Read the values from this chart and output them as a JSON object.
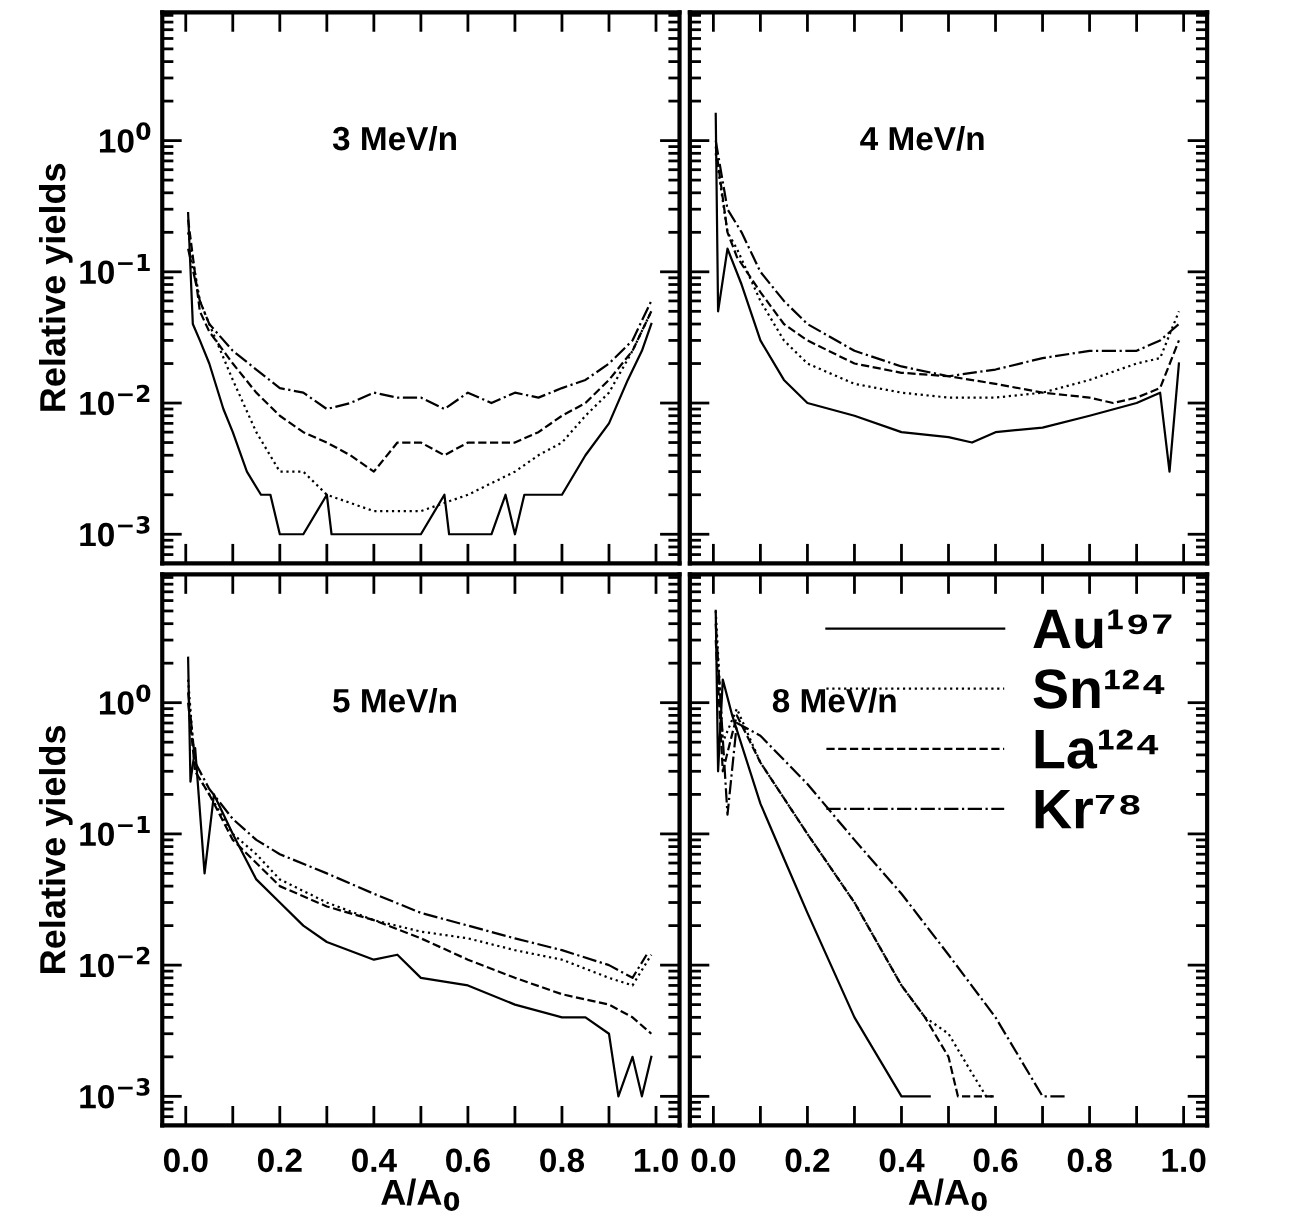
{
  "chart_data": [
    {
      "type": "line",
      "log": true,
      "tick_labels": "y",
      "ylabel": "Relative yields",
      "annotations": [
        "3 MeV/n"
      ],
      "xlim": [
        -0.05,
        1.05
      ],
      "ylim": [
        0.0006,
        9.5
      ],
      "xticks": [
        {
          "value": 0,
          "label": null
        },
        {
          "value": 0.1,
          "label": null
        },
        {
          "value": 0.2,
          "label": null
        },
        {
          "value": 0.3,
          "label": null
        },
        {
          "value": 0.4,
          "label": null
        },
        {
          "value": 0.5,
          "label": null
        },
        {
          "value": 0.6,
          "label": null
        },
        {
          "value": 0.7,
          "label": null
        },
        {
          "value": 0.8,
          "label": null
        },
        {
          "value": 0.9,
          "label": null
        },
        {
          "value": 1,
          "label": null
        }
      ],
      "yticks": [
        {
          "value": 0.001,
          "label": "10$^{−3}$"
        },
        {
          "value": 0.01,
          "label": "10$^{−2}$"
        },
        {
          "value": 0.1,
          "label": "10$^{−1}$"
        },
        {
          "value": 1,
          "label": "10$^{0}$"
        }
      ],
      "series": [
        {
          "color": "#000000",
          "line_style": "solid",
          "x": [
            0.005,
            0.015,
            0.03,
            0.05,
            0.08,
            0.1,
            0.13,
            0.16,
            0.18,
            0.2,
            0.25,
            0.3,
            0.31,
            0.4,
            0.5,
            0.55,
            0.56,
            0.65,
            0.68,
            0.7,
            0.72,
            0.75,
            0.8,
            0.85,
            0.9,
            0.94,
            0.97,
            0.99
          ],
          "values": [
            0.28,
            0.04,
            0.03,
            0.02,
            0.009,
            0.006,
            0.003,
            0.002,
            0.002,
            0.001,
            0.001,
            0.002,
            0.001,
            0.001,
            0.001,
            0.002,
            0.001,
            0.001,
            0.002,
            0.001,
            0.002,
            0.002,
            0.002,
            0.004,
            0.007,
            0.015,
            0.025,
            0.04
          ]
        },
        {
          "color": "#000000",
          "line_style": "dotted",
          "x": [
            0.005,
            0.03,
            0.05,
            0.1,
            0.15,
            0.2,
            0.25,
            0.3,
            0.4,
            0.5,
            0.6,
            0.7,
            0.75,
            0.8,
            0.85,
            0.9,
            0.95,
            0.99
          ],
          "values": [
            0.2,
            0.06,
            0.04,
            0.015,
            0.006,
            0.003,
            0.003,
            0.002,
            0.0015,
            0.0015,
            0.002,
            0.003,
            0.004,
            0.005,
            0.008,
            0.012,
            0.025,
            0.05
          ]
        },
        {
          "color": "#000000",
          "line_style": "dashed",
          "x": [
            0.005,
            0.03,
            0.05,
            0.1,
            0.15,
            0.2,
            0.25,
            0.3,
            0.35,
            0.4,
            0.45,
            0.5,
            0.55,
            0.6,
            0.65,
            0.7,
            0.75,
            0.8,
            0.85,
            0.9,
            0.95,
            0.99
          ],
          "values": [
            0.25,
            0.05,
            0.035,
            0.02,
            0.012,
            0.008,
            0.006,
            0.005,
            0.004,
            0.003,
            0.005,
            0.005,
            0.004,
            0.005,
            0.005,
            0.005,
            0.006,
            0.008,
            0.01,
            0.015,
            0.025,
            0.05
          ]
        },
        {
          "color": "#000000",
          "line_style": "dashdot",
          "x": [
            0.005,
            0.03,
            0.05,
            0.1,
            0.15,
            0.2,
            0.25,
            0.3,
            0.35,
            0.4,
            0.45,
            0.5,
            0.55,
            0.6,
            0.65,
            0.7,
            0.75,
            0.8,
            0.85,
            0.9,
            0.95,
            0.99
          ],
          "values": [
            0.15,
            0.06,
            0.04,
            0.025,
            0.018,
            0.013,
            0.012,
            0.009,
            0.01,
            0.012,
            0.011,
            0.011,
            0.009,
            0.012,
            0.01,
            0.012,
            0.011,
            0.013,
            0.015,
            0.02,
            0.03,
            0.06
          ]
        }
      ]
    },
    {
      "type": "line",
      "log": true,
      "tick_labels": false,
      "annotations": [
        "4 MeV/n"
      ],
      "xlim": [
        -0.05,
        1.05
      ],
      "ylim": [
        0.0006,
        9.5
      ],
      "xticks": [
        {
          "value": 0,
          "label": null
        },
        {
          "value": 0.1,
          "label": null
        },
        {
          "value": 0.2,
          "label": null
        },
        {
          "value": 0.3,
          "label": null
        },
        {
          "value": 0.4,
          "label": null
        },
        {
          "value": 0.5,
          "label": null
        },
        {
          "value": 0.6,
          "label": null
        },
        {
          "value": 0.7,
          "label": null
        },
        {
          "value": 0.8,
          "label": null
        },
        {
          "value": 0.9,
          "label": null
        },
        {
          "value": 1,
          "label": null
        }
      ],
      "yticks": [
        {
          "value": 0.001,
          "label": null
        },
        {
          "value": 0.01,
          "label": null
        },
        {
          "value": 0.1,
          "label": null
        },
        {
          "value": 1,
          "label": null
        }
      ],
      "series": [
        {
          "color": "#000000",
          "line_style": "solid",
          "x": [
            0.005,
            0.01,
            0.03,
            0.06,
            0.1,
            0.15,
            0.2,
            0.3,
            0.4,
            0.5,
            0.55,
            0.6,
            0.7,
            0.8,
            0.9,
            0.95,
            0.97,
            0.99
          ],
          "values": [
            1.6,
            0.05,
            0.15,
            0.08,
            0.03,
            0.015,
            0.01,
            0.008,
            0.006,
            0.0055,
            0.005,
            0.006,
            0.0065,
            0.008,
            0.01,
            0.012,
            0.003,
            0.02
          ]
        },
        {
          "color": "#000000",
          "line_style": "dotted",
          "x": [
            0.005,
            0.03,
            0.05,
            0.1,
            0.15,
            0.2,
            0.3,
            0.4,
            0.5,
            0.6,
            0.7,
            0.8,
            0.9,
            0.95,
            0.99
          ],
          "values": [
            0.8,
            0.2,
            0.15,
            0.06,
            0.03,
            0.02,
            0.014,
            0.012,
            0.011,
            0.011,
            0.012,
            0.015,
            0.02,
            0.022,
            0.05
          ]
        },
        {
          "color": "#000000",
          "line_style": "dashed",
          "x": [
            0.005,
            0.03,
            0.05,
            0.1,
            0.15,
            0.2,
            0.3,
            0.4,
            0.5,
            0.6,
            0.7,
            0.8,
            0.85,
            0.9,
            0.95,
            0.99
          ],
          "values": [
            0.9,
            0.2,
            0.13,
            0.07,
            0.04,
            0.03,
            0.02,
            0.017,
            0.016,
            0.014,
            0.012,
            0.011,
            0.01,
            0.011,
            0.013,
            0.03
          ]
        },
        {
          "color": "#000000",
          "line_style": "dashdot",
          "x": [
            0.005,
            0.03,
            0.06,
            0.1,
            0.15,
            0.2,
            0.3,
            0.4,
            0.5,
            0.6,
            0.7,
            0.8,
            0.9,
            0.95,
            0.99
          ],
          "values": [
            1.0,
            0.3,
            0.2,
            0.1,
            0.06,
            0.04,
            0.025,
            0.019,
            0.016,
            0.018,
            0.022,
            0.025,
            0.025,
            0.03,
            0.04
          ]
        }
      ]
    },
    {
      "type": "line",
      "log": true,
      "xlabel": "A/A$_{0}$",
      "ylabel": "Relative yields",
      "annotations": [
        "5 MeV/n"
      ],
      "xlim": [
        -0.05,
        1.05
      ],
      "ylim": [
        0.0006,
        9.5
      ],
      "xticks": [
        {
          "value": 0,
          "label": "0.0"
        },
        {
          "value": 0.1,
          "label": null
        },
        {
          "value": 0.2,
          "label": "0.2"
        },
        {
          "value": 0.3,
          "label": null
        },
        {
          "value": 0.4,
          "label": "0.4"
        },
        {
          "value": 0.5,
          "label": null
        },
        {
          "value": 0.6,
          "label": "0.6"
        },
        {
          "value": 0.7,
          "label": null
        },
        {
          "value": 0.8,
          "label": "0.8"
        },
        {
          "value": 0.9,
          "label": null
        },
        {
          "value": 1,
          "label": "1.0"
        }
      ],
      "yticks": [
        {
          "value": 0.001,
          "label": "10$^{−3}$"
        },
        {
          "value": 0.01,
          "label": "10$^{−2}$"
        },
        {
          "value": 0.1,
          "label": "10$^{−1}$"
        },
        {
          "value": 1,
          "label": "10$^{0}$"
        }
      ],
      "series": [
        {
          "color": "#000000",
          "line_style": "solid",
          "x": [
            0.005,
            0.01,
            0.02,
            0.04,
            0.06,
            0.1,
            0.15,
            0.2,
            0.25,
            0.3,
            0.4,
            0.45,
            0.5,
            0.6,
            0.7,
            0.8,
            0.85,
            0.9,
            0.92,
            0.95,
            0.97,
            0.99
          ],
          "values": [
            2.2,
            0.25,
            0.45,
            0.05,
            0.2,
            0.1,
            0.045,
            0.03,
            0.02,
            0.015,
            0.011,
            0.012,
            0.008,
            0.007,
            0.005,
            0.004,
            0.004,
            0.003,
            0.001,
            0.002,
            0.001,
            0.002
          ]
        },
        {
          "color": "#000000",
          "line_style": "dotted",
          "x": [
            0.005,
            0.02,
            0.05,
            0.1,
            0.15,
            0.2,
            0.3,
            0.4,
            0.5,
            0.6,
            0.7,
            0.8,
            0.9,
            0.95,
            0.99
          ],
          "values": [
            1.5,
            0.3,
            0.2,
            0.1,
            0.07,
            0.045,
            0.03,
            0.022,
            0.018,
            0.016,
            0.013,
            0.011,
            0.008,
            0.007,
            0.012
          ]
        },
        {
          "color": "#000000",
          "line_style": "dashed",
          "x": [
            0.005,
            0.02,
            0.05,
            0.1,
            0.15,
            0.2,
            0.3,
            0.4,
            0.5,
            0.6,
            0.7,
            0.8,
            0.9,
            0.95,
            0.99
          ],
          "values": [
            1.0,
            0.3,
            0.2,
            0.09,
            0.06,
            0.04,
            0.028,
            0.022,
            0.016,
            0.011,
            0.008,
            0.006,
            0.005,
            0.004,
            0.003
          ]
        },
        {
          "color": "#000000",
          "line_style": "dashdot",
          "x": [
            0.005,
            0.02,
            0.05,
            0.1,
            0.15,
            0.2,
            0.3,
            0.4,
            0.5,
            0.6,
            0.7,
            0.8,
            0.9,
            0.95,
            0.98
          ],
          "values": [
            1.2,
            0.35,
            0.22,
            0.13,
            0.09,
            0.07,
            0.05,
            0.035,
            0.025,
            0.02,
            0.016,
            0.013,
            0.01,
            0.008,
            0.012
          ]
        }
      ]
    },
    {
      "type": "line",
      "log": true,
      "tick_labels": "x",
      "xlabel": "A/A$_{0}$",
      "legend": "top right",
      "annotations": [
        "8 MeV/n"
      ],
      "xlim": [
        -0.05,
        1.05
      ],
      "ylim": [
        0.0006,
        9.5
      ],
      "xticks": [
        {
          "value": 0,
          "label": "0.0"
        },
        {
          "value": 0.1,
          "label": null
        },
        {
          "value": 0.2,
          "label": "0.2"
        },
        {
          "value": 0.3,
          "label": null
        },
        {
          "value": 0.4,
          "label": "0.4"
        },
        {
          "value": 0.5,
          "label": null
        },
        {
          "value": 0.6,
          "label": "0.6"
        },
        {
          "value": 0.7,
          "label": null
        },
        {
          "value": 0.8,
          "label": "0.8"
        },
        {
          "value": 0.9,
          "label": null
        },
        {
          "value": 1,
          "label": "1.0"
        }
      ],
      "yticks": [
        {
          "value": 0.001,
          "label": null
        },
        {
          "value": 0.01,
          "label": null
        },
        {
          "value": 0.1,
          "label": null
        },
        {
          "value": 1,
          "label": null
        }
      ],
      "series": [
        {
          "name": "Au¹⁹⁷",
          "color": "#000000",
          "line_style": "solid",
          "x": [
            0.005,
            0.01,
            0.02,
            0.04,
            0.1,
            0.15,
            0.2,
            0.25,
            0.3,
            0.35,
            0.4,
            0.42,
            0.46
          ],
          "values": [
            5,
            0.3,
            1.5,
            0.8,
            0.17,
            0.065,
            0.025,
            0.01,
            0.004,
            0.002,
            0.001,
            0.001,
            0.001
          ]
        },
        {
          "name": "Sn¹²⁴",
          "color": "#000000",
          "line_style": "dotted",
          "x": [
            0.005,
            0.02,
            0.05,
            0.1,
            0.2,
            0.3,
            0.4,
            0.45,
            0.5,
            0.55,
            0.58,
            0.6
          ],
          "values": [
            5,
            0.5,
            0.9,
            0.35,
            0.1,
            0.03,
            0.007,
            0.004,
            0.003,
            0.0015,
            0.001,
            0.001
          ]
        },
        {
          "name": "La¹²⁴",
          "color": "#000000",
          "line_style": "dashed",
          "x": [
            0.005,
            0.02,
            0.05,
            0.1,
            0.2,
            0.3,
            0.4,
            0.45,
            0.5,
            0.52,
            0.6
          ],
          "values": [
            3,
            0.3,
            0.8,
            0.35,
            0.1,
            0.03,
            0.007,
            0.004,
            0.002,
            0.001,
            0.001
          ]
        },
        {
          "name": "Kr⁷⁸",
          "color": "#000000",
          "line_style": "dashdot",
          "x": [
            0.005,
            0.03,
            0.05,
            0.1,
            0.2,
            0.3,
            0.4,
            0.5,
            0.6,
            0.65,
            0.7,
            0.75
          ],
          "values": [
            4,
            0.14,
            0.7,
            0.56,
            0.24,
            0.09,
            0.035,
            0.012,
            0.004,
            0.002,
            0.001,
            0.001
          ]
        }
      ]
    }
  ]
}
